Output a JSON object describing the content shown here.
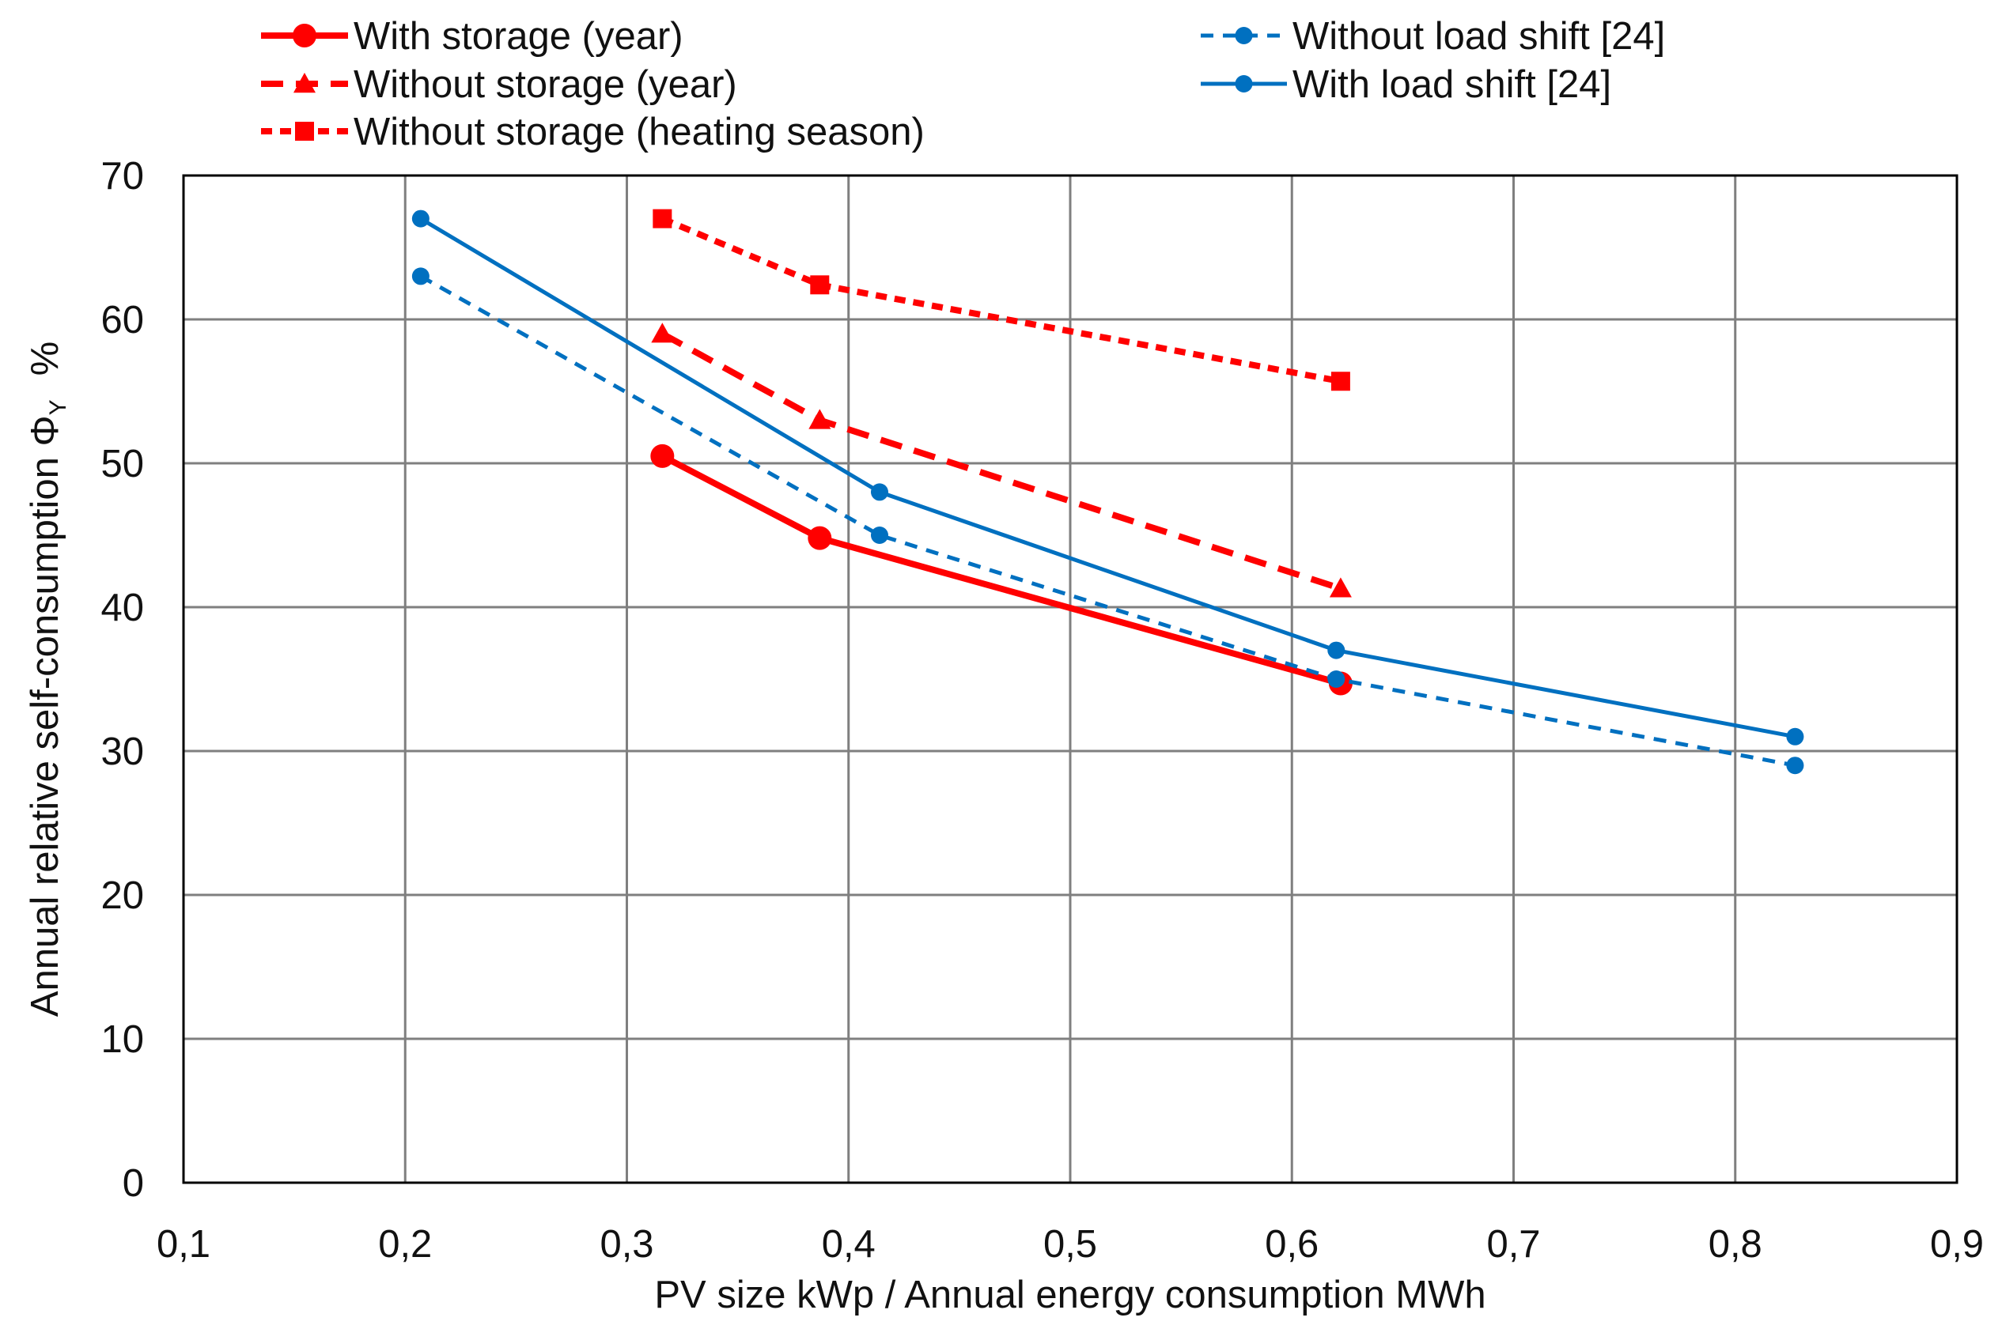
{
  "chart_data": {
    "type": "line",
    "title": "",
    "xlabel": "PV size kWp / Annual energy consumption MWh",
    "ylabel": "Annual relative self-consumption Φ",
    "ylabel_subscript": "Y",
    "ylabel_unit": "%",
    "xlim": [
      0.1,
      0.9
    ],
    "ylim": [
      0,
      70
    ],
    "xticks": [
      0.1,
      0.2,
      0.3,
      0.4,
      0.5,
      0.6,
      0.7,
      0.8,
      0.9
    ],
    "xtick_labels": [
      "0,1",
      "0,2",
      "0,3",
      "0,4",
      "0,5",
      "0,6",
      "0,7",
      "0,8",
      "0,9"
    ],
    "yticks": [
      0,
      10,
      20,
      30,
      40,
      50,
      60,
      70
    ],
    "ytick_labels": [
      "0",
      "10",
      "20",
      "30",
      "40",
      "50",
      "60",
      "70"
    ],
    "grid": true,
    "legend_position": "top",
    "series": [
      {
        "name": "With storage (year)",
        "color": "#ff0000",
        "line_style": "solid",
        "marker": "circle",
        "x": [
          0.316,
          0.387,
          0.622
        ],
        "y": [
          50.5,
          44.8,
          34.7
        ]
      },
      {
        "name": "Without storage (year)",
        "color": "#ff0000",
        "line_style": "dashed",
        "marker": "triangle",
        "x": [
          0.316,
          0.387,
          0.622
        ],
        "y": [
          59,
          53,
          41.3
        ]
      },
      {
        "name": "Without storage (heating season)",
        "color": "#ff0000",
        "line_style": "dotted",
        "marker": "square",
        "x": [
          0.316,
          0.387,
          0.622
        ],
        "y": [
          67,
          62.4,
          55.7
        ]
      },
      {
        "name": "Without load shift [24]",
        "color": "#0070c0",
        "line_style": "dashed",
        "marker": "circle",
        "x": [
          0.207,
          0.414,
          0.62,
          0.827
        ],
        "y": [
          63,
          45,
          35,
          29
        ]
      },
      {
        "name": "With load shift [24]",
        "color": "#0070c0",
        "line_style": "solid",
        "marker": "circle",
        "x": [
          0.207,
          0.414,
          0.62,
          0.827
        ],
        "y": [
          67,
          48,
          37,
          31
        ]
      }
    ]
  }
}
